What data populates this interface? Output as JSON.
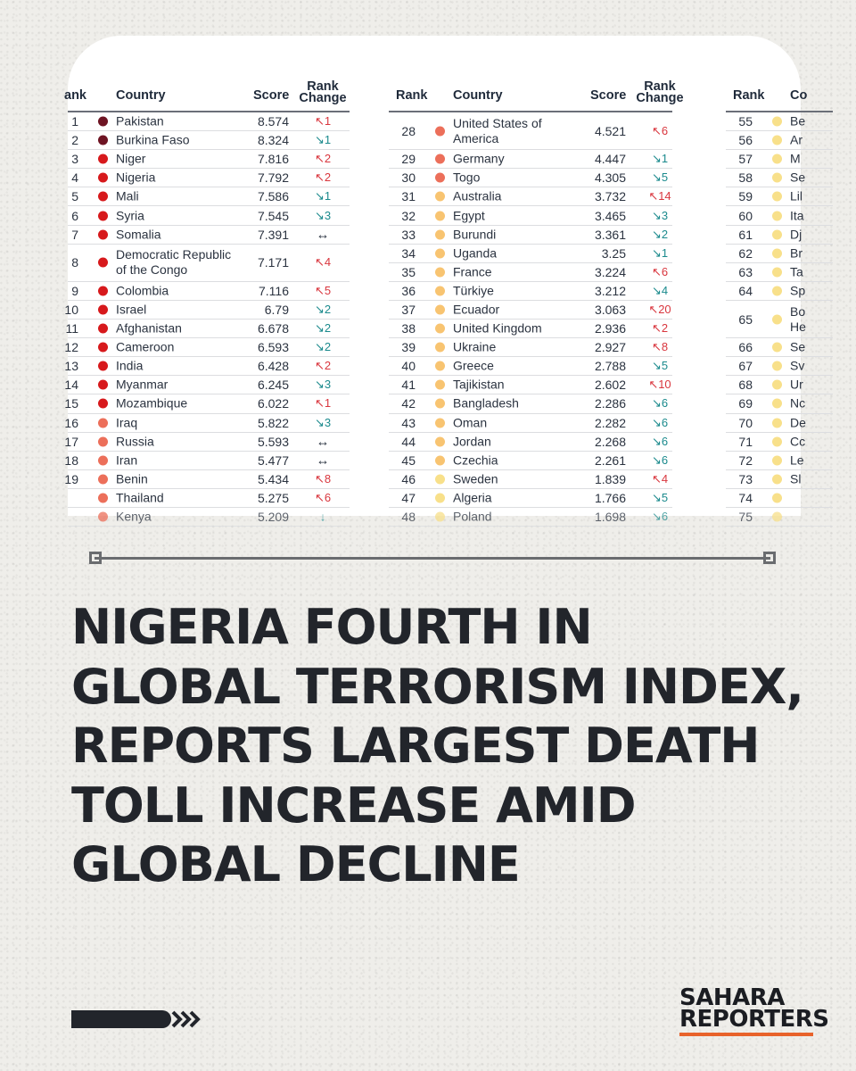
{
  "table": {
    "columns": [
      {
        "headers": {
          "rank": "ank",
          "country": "Country",
          "score": "Score",
          "change": "Rank\nChange"
        },
        "rows": [
          {
            "rank": "1",
            "country": "Pakistan",
            "score": "8.574",
            "change": "↖1",
            "dir": "up",
            "dot": "#6e1423"
          },
          {
            "rank": "2",
            "country": "Burkina Faso",
            "score": "8.324",
            "change": "↘1",
            "dir": "down",
            "dot": "#6e1423"
          },
          {
            "rank": "3",
            "country": "Niger",
            "score": "7.816",
            "change": "↖2",
            "dir": "up",
            "dot": "#d7191c"
          },
          {
            "rank": "4",
            "country": "Nigeria",
            "score": "7.792",
            "change": "↖2",
            "dir": "up",
            "dot": "#d7191c"
          },
          {
            "rank": "5",
            "country": "Mali",
            "score": "7.586",
            "change": "↘1",
            "dir": "down",
            "dot": "#d7191c"
          },
          {
            "rank": "6",
            "country": "Syria",
            "score": "7.545",
            "change": "↘3",
            "dir": "down",
            "dot": "#d7191c"
          },
          {
            "rank": "7",
            "country": "Somalia",
            "score": "7.391",
            "change": "↔",
            "dir": "flat",
            "dot": "#d7191c"
          },
          {
            "rank": "8",
            "country": "Democratic Republic\nof the Congo",
            "score": "7.171",
            "change": "↖4",
            "dir": "up",
            "dot": "#d7191c",
            "tall": true
          },
          {
            "rank": "9",
            "country": "Colombia",
            "score": "7.116",
            "change": "↖5",
            "dir": "up",
            "dot": "#d7191c"
          },
          {
            "rank": "10",
            "country": "Israel",
            "score": "6.79",
            "change": "↘2",
            "dir": "down",
            "dot": "#d7191c"
          },
          {
            "rank": "11",
            "country": "Afghanistan",
            "score": "6.678",
            "change": "↘2",
            "dir": "down",
            "dot": "#d7191c"
          },
          {
            "rank": "12",
            "country": "Cameroon",
            "score": "6.593",
            "change": "↘2",
            "dir": "down",
            "dot": "#d7191c"
          },
          {
            "rank": "13",
            "country": "India",
            "score": "6.428",
            "change": "↖2",
            "dir": "up",
            "dot": "#d7191c"
          },
          {
            "rank": "14",
            "country": "Myanmar",
            "score": "6.245",
            "change": "↘3",
            "dir": "down",
            "dot": "#d7191c"
          },
          {
            "rank": "15",
            "country": "Mozambique",
            "score": "6.022",
            "change": "↖1",
            "dir": "up",
            "dot": "#d7191c"
          },
          {
            "rank": "16",
            "country": "Iraq",
            "score": "5.822",
            "change": "↘3",
            "dir": "down",
            "dot": "#ec6f5a"
          },
          {
            "rank": "17",
            "country": "Russia",
            "score": "5.593",
            "change": "↔",
            "dir": "flat",
            "dot": "#ec6f5a"
          },
          {
            "rank": "18",
            "country": "Iran",
            "score": "5.477",
            "change": "↔",
            "dir": "flat",
            "dot": "#ec6f5a"
          },
          {
            "rank": "19",
            "country": "Benin",
            "score": "5.434",
            "change": "↖8",
            "dir": "up",
            "dot": "#ec6f5a"
          },
          {
            "rank": "",
            "country": "Thailand",
            "score": "5.275",
            "change": "↖6",
            "dir": "up",
            "dot": "#ec6f5a"
          },
          {
            "rank": "",
            "country": "Kenya",
            "score": "5.209",
            "change": "↓",
            "dir": "down",
            "dot": "#ec6f5a",
            "cut": true
          }
        ]
      },
      {
        "headers": {
          "rank": "Rank",
          "country": "Country",
          "score": "Score",
          "change": "Rank\nChange"
        },
        "rows": [
          {
            "rank": "28",
            "country": "United States of\nAmerica",
            "score": "4.521",
            "change": "↖6",
            "dir": "up",
            "dot": "#ec6f5a",
            "tall": true
          },
          {
            "rank": "29",
            "country": "Germany",
            "score": "4.447",
            "change": "↘1",
            "dir": "down",
            "dot": "#ec6f5a"
          },
          {
            "rank": "30",
            "country": "Togo",
            "score": "4.305",
            "change": "↘5",
            "dir": "down",
            "dot": "#ec6f5a"
          },
          {
            "rank": "31",
            "country": "Australia",
            "score": "3.732",
            "change": "↖14",
            "dir": "up",
            "dot": "#f8c471"
          },
          {
            "rank": "32",
            "country": "Egypt",
            "score": "3.465",
            "change": "↘3",
            "dir": "down",
            "dot": "#f8c471"
          },
          {
            "rank": "33",
            "country": "Burundi",
            "score": "3.361",
            "change": "↘2",
            "dir": "down",
            "dot": "#f8c471"
          },
          {
            "rank": "34",
            "country": "Uganda",
            "score": "3.25",
            "change": "↘1",
            "dir": "down",
            "dot": "#f8c471"
          },
          {
            "rank": "35",
            "country": "France",
            "score": "3.224",
            "change": "↖6",
            "dir": "up",
            "dot": "#f8c471"
          },
          {
            "rank": "36",
            "country": "Türkiye",
            "score": "3.212",
            "change": "↘4",
            "dir": "down",
            "dot": "#f8c471"
          },
          {
            "rank": "37",
            "country": "Ecuador",
            "score": "3.063",
            "change": "↖20",
            "dir": "up",
            "dot": "#f8c471"
          },
          {
            "rank": "38",
            "country": "United Kingdom",
            "score": "2.936",
            "change": "↖2",
            "dir": "up",
            "dot": "#f8c471"
          },
          {
            "rank": "39",
            "country": "Ukraine",
            "score": "2.927",
            "change": "↖8",
            "dir": "up",
            "dot": "#f8c471"
          },
          {
            "rank": "40",
            "country": "Greece",
            "score": "2.788",
            "change": "↘5",
            "dir": "down",
            "dot": "#f8c471"
          },
          {
            "rank": "41",
            "country": "Tajikistan",
            "score": "2.602",
            "change": "↖10",
            "dir": "up",
            "dot": "#f8c471"
          },
          {
            "rank": "42",
            "country": "Bangladesh",
            "score": "2.286",
            "change": "↘6",
            "dir": "down",
            "dot": "#f8c471"
          },
          {
            "rank": "43",
            "country": "Oman",
            "score": "2.282",
            "change": "↘6",
            "dir": "down",
            "dot": "#f8c471"
          },
          {
            "rank": "44",
            "country": "Jordan",
            "score": "2.268",
            "change": "↘6",
            "dir": "down",
            "dot": "#f8c471"
          },
          {
            "rank": "45",
            "country": "Czechia",
            "score": "2.261",
            "change": "↘6",
            "dir": "down",
            "dot": "#f8c471"
          },
          {
            "rank": "46",
            "country": "Sweden",
            "score": "1.839",
            "change": "↖4",
            "dir": "up",
            "dot": "#f8e08a"
          },
          {
            "rank": "47",
            "country": "Algeria",
            "score": "1.766",
            "change": "↘5",
            "dir": "down",
            "dot": "#f8e08a"
          },
          {
            "rank": "48",
            "country": "Poland",
            "score": "1.698",
            "change": "↘6",
            "dir": "down",
            "dot": "#f8e08a",
            "cut": true
          }
        ]
      },
      {
        "headers": {
          "rank": "Rank",
          "country": "Co"
        },
        "rows": [
          {
            "rank": "55",
            "country": "Be",
            "dot": "#f8e08a"
          },
          {
            "rank": "56",
            "country": "Ar",
            "dot": "#f8e08a"
          },
          {
            "rank": "57",
            "country": "M",
            "dot": "#f8e08a"
          },
          {
            "rank": "58",
            "country": "Se",
            "dot": "#f8e08a"
          },
          {
            "rank": "59",
            "country": "Lil",
            "dot": "#f8e08a"
          },
          {
            "rank": "60",
            "country": "Ita",
            "dot": "#f8e08a"
          },
          {
            "rank": "61",
            "country": "Dj",
            "dot": "#f8e08a"
          },
          {
            "rank": "62",
            "country": "Br",
            "dot": "#f8e08a"
          },
          {
            "rank": "63",
            "country": "Ta",
            "dot": "#f8e08a"
          },
          {
            "rank": "64",
            "country": "Sp",
            "dot": "#f8e08a"
          },
          {
            "rank": "65",
            "country": "Bo\nHe",
            "dot": "#f8e08a",
            "tall": true
          },
          {
            "rank": "66",
            "country": "Se",
            "dot": "#f8e08a"
          },
          {
            "rank": "67",
            "country": "Sv",
            "dot": "#f8e08a"
          },
          {
            "rank": "68",
            "country": "Ur",
            "dot": "#f8e08a"
          },
          {
            "rank": "69",
            "country": "Nc",
            "dot": "#f8e08a"
          },
          {
            "rank": "70",
            "country": "De",
            "dot": "#f8e08a"
          },
          {
            "rank": "71",
            "country": "Cc",
            "dot": "#f8e08a"
          },
          {
            "rank": "72",
            "country": "Le",
            "dot": "#f8e08a"
          },
          {
            "rank": "73",
            "country": "Sl",
            "dot": "#f8e08a"
          },
          {
            "rank": "74",
            "country": "",
            "dot": "#f8e08a"
          },
          {
            "rank": "75",
            "country": "",
            "dot": "#f8e08a",
            "cut": true
          }
        ]
      }
    ]
  },
  "headline": {
    "lines": [
      "NIGERIA FOURTH IN",
      "GLOBAL TERRORISM INDEX,",
      "REPORTS LARGEST DEATH",
      "TOLL INCREASE AMID",
      "GLOBAL DECLINE"
    ]
  },
  "brand": {
    "line1": "SAHARA",
    "line2": "REPORTERS",
    "accent": "#e8622a"
  },
  "icons": {
    "footer_arrows": "double-chevron-right-icon"
  }
}
